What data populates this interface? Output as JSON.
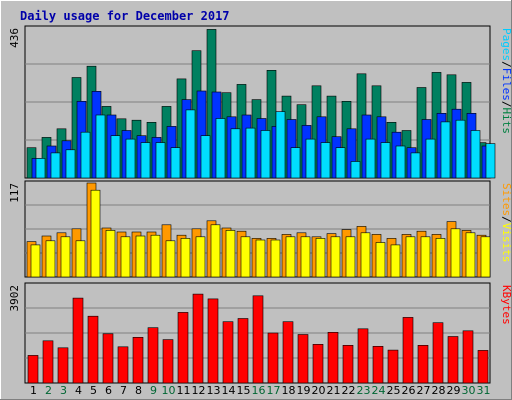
{
  "chart_data": {
    "type": "bar",
    "title": "Daily usage for December 2017",
    "categories": [
      "1",
      "2",
      "3",
      "4",
      "5",
      "6",
      "7",
      "8",
      "9",
      "10",
      "11",
      "12",
      "13",
      "14",
      "15",
      "16",
      "17",
      "18",
      "19",
      "20",
      "21",
      "22",
      "23",
      "24",
      "25",
      "26",
      "27",
      "28",
      "29",
      "30",
      "31"
    ],
    "weekend_days": [
      "2",
      "3",
      "9",
      "10",
      "16",
      "17",
      "23",
      "24",
      "30",
      "31"
    ],
    "panels": {
      "top": {
        "max_label": "436",
        "ymax": 436,
        "legend": [
          {
            "text": "Pages",
            "color": "#00ccff"
          },
          {
            "text": "Files",
            "color": "#0033ff"
          },
          {
            "text": "Hits",
            "color": "#008040"
          }
        ],
        "series": [
          {
            "name": "Hits",
            "color": "#008060",
            "values": [
              88,
              118,
              143,
              292,
              325,
              208,
              172,
              168,
              162,
              208,
              288,
              370,
              432,
              248,
              272,
              228,
              313,
              238,
              213,
              268,
              238,
              223,
              303,
              268,
              162,
              138,
              263,
              307,
              300,
              278,
              103
            ]
          },
          {
            "name": "Files",
            "color": "#0033ff",
            "values": [
              57,
              93,
              108,
              223,
              252,
              183,
              138,
              123,
              118,
              150,
              228,
              253,
              250,
              178,
              183,
              173,
              150,
              170,
              153,
              178,
              120,
              143,
              183,
              178,
              133,
              88,
              170,
              188,
              200,
              188,
              93
            ]
          },
          {
            "name": "Pages",
            "color": "#00ddff",
            "values": [
              57,
              73,
              82,
              133,
              183,
              123,
              113,
              103,
              103,
              88,
              198,
              123,
              173,
              143,
              145,
              138,
              193,
              88,
              113,
              103,
              88,
              48,
              113,
              103,
              93,
              73,
              113,
              163,
              168,
              138,
              100
            ]
          }
        ]
      },
      "middle": {
        "max_label": "117",
        "ymax": 117,
        "legend": [
          {
            "text": "Sites",
            "color": "#ff9900"
          },
          {
            "text": "Visits",
            "color": "#ffff00"
          }
        ],
        "series": [
          {
            "name": "Sites",
            "color": "#ff9900",
            "values": [
              44,
              51,
              55,
              60,
              117,
              61,
              56,
              56,
              56,
              65,
              52,
              60,
              70,
              61,
              57,
              48,
              48,
              53,
              55,
              50,
              54,
              59,
              63,
              53,
              48,
              53,
              57,
              53,
              69,
              58,
              52
            ]
          },
          {
            "name": "Visits",
            "color": "#ffff00",
            "values": [
              40,
              45,
              50,
              45,
              108,
              58,
              50,
              51,
              52,
              45,
              48,
              50,
              65,
              58,
              50,
              46,
              46,
              50,
              50,
              48,
              50,
              50,
              55,
              43,
              40,
              50,
              50,
              48,
              60,
              55,
              50
            ]
          }
        ]
      },
      "bottom": {
        "max_label": "3902",
        "ymax": 3902,
        "legend": [
          {
            "text": "KBytes",
            "color": "#ff0000"
          }
        ],
        "series": [
          {
            "name": "KBytes",
            "color": "#ff0000",
            "values": [
              1100,
              1680,
              1400,
              3380,
              2660,
              1960,
              1440,
              1820,
              2200,
              1730,
              2810,
              3540,
              3350,
              2440,
              2570,
              3470,
              1990,
              2440,
              1930,
              1540,
              2020,
              1500,
              2160,
              1460,
              1310,
              2610,
              1500,
              2400,
              1850,
              2080,
              1300
            ]
          }
        ]
      }
    }
  }
}
